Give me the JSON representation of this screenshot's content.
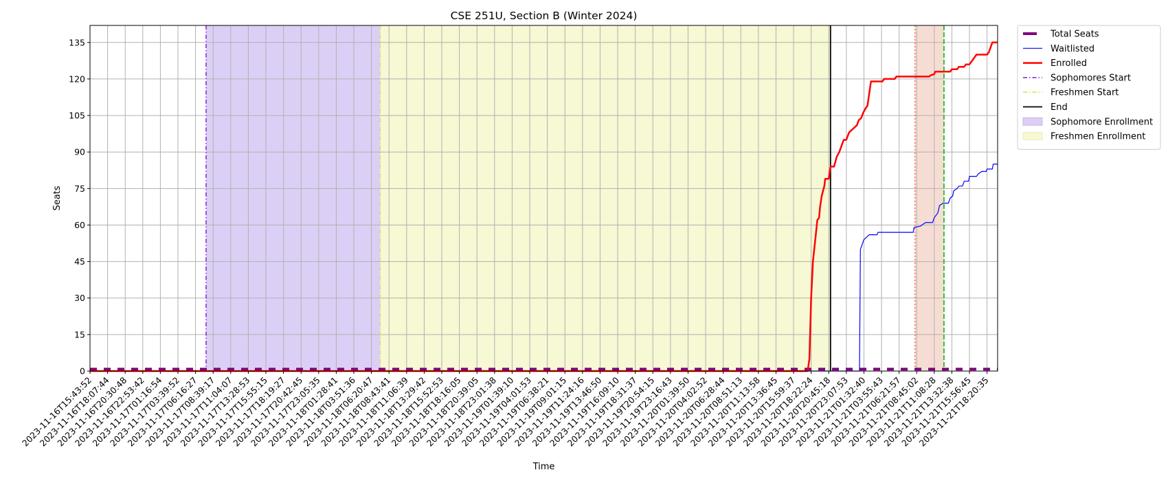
{
  "chart_data": {
    "type": "line",
    "title": "CSE 251U, Section B (Winter 2024)",
    "xlabel": "Time",
    "ylabel": "Seats",
    "ylim": [
      0,
      142
    ],
    "yticks": [
      0,
      15,
      30,
      45,
      60,
      75,
      90,
      105,
      120,
      135
    ],
    "grid": true,
    "legend_position": "outside-right",
    "x_categories": [
      "2023-11-16T15:43:52",
      "2023-11-16T18:07:44",
      "2023-11-16T20:30:48",
      "2023-11-16T22:53:42",
      "2023-11-17T01:16:54",
      "2023-11-17T03:39:52",
      "2023-11-17T06:16:27",
      "2023-11-17T08:39:17",
      "2023-11-17T11:04:07",
      "2023-11-17T13:28:53",
      "2023-11-17T15:55:15",
      "2023-11-17T18:19:27",
      "2023-11-17T20:42:45",
      "2023-11-17T23:05:35",
      "2023-11-18T01:28:41",
      "2023-11-18T03:51:36",
      "2023-11-18T06:20:47",
      "2023-11-18T08:43:41",
      "2023-11-18T11:06:39",
      "2023-11-18T13:29:42",
      "2023-11-18T15:52:53",
      "2023-11-18T18:16:05",
      "2023-11-18T20:39:05",
      "2023-11-18T23:01:38",
      "2023-11-19T01:39:10",
      "2023-11-19T04:01:53",
      "2023-11-19T06:38:21",
      "2023-11-19T09:01:15",
      "2023-11-19T11:24:16",
      "2023-11-19T13:46:50",
      "2023-11-19T16:09:10",
      "2023-11-19T18:31:37",
      "2023-11-19T20:54:15",
      "2023-11-19T23:16:43",
      "2023-11-20T01:39:50",
      "2023-11-20T04:02:52",
      "2023-11-20T06:28:44",
      "2023-11-20T08:51:13",
      "2023-11-20T11:13:58",
      "2023-11-20T13:36:45",
      "2023-11-20T15:59:37",
      "2023-11-20T18:22:24",
      "2023-11-20T20:45:18",
      "2023-11-20T23:07:53",
      "2023-11-21T01:32:40",
      "2023-11-21T03:55:43",
      "2023-11-21T06:21:57",
      "2023-11-21T08:45:02",
      "2023-11-21T11:08:28",
      "2023-11-21T13:32:38",
      "2023-11-21T15:56:45",
      "2023-11-21T18:20:35"
    ],
    "x_range": [
      0,
      51.6
    ],
    "series": [
      {
        "name": "Total Seats",
        "color": "#800080",
        "style": "dashed-thick",
        "points": [
          [
            0,
            0.8
          ],
          [
            51.6,
            0.8
          ]
        ]
      },
      {
        "name": "Waitlisted",
        "color": "#0000ff",
        "style": "solid-thin",
        "points": [
          [
            0,
            0
          ],
          [
            43.75,
            0
          ],
          [
            43.8,
            50
          ],
          [
            44.0,
            54
          ],
          [
            44.15,
            55
          ],
          [
            44.3,
            56
          ],
          [
            44.75,
            56
          ],
          [
            44.8,
            57
          ],
          [
            46.8,
            57
          ],
          [
            46.85,
            59
          ],
          [
            47.2,
            59.5
          ],
          [
            47.3,
            60
          ],
          [
            47.5,
            61
          ],
          [
            47.9,
            61
          ],
          [
            48.0,
            63
          ],
          [
            48.2,
            65
          ],
          [
            48.3,
            68
          ],
          [
            48.5,
            69
          ],
          [
            48.8,
            69
          ],
          [
            48.9,
            71
          ],
          [
            49.05,
            72
          ],
          [
            49.1,
            74
          ],
          [
            49.3,
            75
          ],
          [
            49.4,
            76
          ],
          [
            49.6,
            76
          ],
          [
            49.7,
            78
          ],
          [
            49.95,
            78
          ],
          [
            50.0,
            80
          ],
          [
            50.4,
            80
          ],
          [
            50.5,
            81
          ],
          [
            50.7,
            82
          ],
          [
            50.95,
            82
          ],
          [
            51.0,
            83
          ],
          [
            51.3,
            83
          ],
          [
            51.35,
            85
          ],
          [
            51.6,
            85
          ]
        ]
      },
      {
        "name": "Enrolled",
        "color": "#ff0000",
        "style": "solid-thick",
        "points": [
          [
            0,
            0
          ],
          [
            40.8,
            0
          ],
          [
            40.9,
            5
          ],
          [
            41.0,
            30
          ],
          [
            41.1,
            45
          ],
          [
            41.25,
            55
          ],
          [
            41.35,
            62
          ],
          [
            41.45,
            63
          ],
          [
            41.5,
            67
          ],
          [
            41.6,
            72
          ],
          [
            41.75,
            76
          ],
          [
            41.8,
            79
          ],
          [
            42.0,
            79
          ],
          [
            42.1,
            84
          ],
          [
            42.3,
            84
          ],
          [
            42.45,
            88
          ],
          [
            42.6,
            90
          ],
          [
            42.75,
            93
          ],
          [
            42.85,
            95
          ],
          [
            43.0,
            95
          ],
          [
            43.15,
            98
          ],
          [
            43.3,
            99
          ],
          [
            43.45,
            100
          ],
          [
            43.6,
            101
          ],
          [
            43.7,
            103
          ],
          [
            43.85,
            104
          ],
          [
            43.95,
            106
          ],
          [
            44.1,
            108
          ],
          [
            44.2,
            109
          ],
          [
            44.3,
            114
          ],
          [
            44.4,
            119
          ],
          [
            45.05,
            119
          ],
          [
            45.15,
            120
          ],
          [
            45.75,
            120
          ],
          [
            45.85,
            121
          ],
          [
            47.7,
            121
          ],
          [
            47.8,
            121.5
          ],
          [
            48.0,
            122
          ],
          [
            48.05,
            123
          ],
          [
            48.9,
            123
          ],
          [
            49.0,
            124
          ],
          [
            49.3,
            124
          ],
          [
            49.4,
            125
          ],
          [
            49.7,
            125
          ],
          [
            49.8,
            126
          ],
          [
            50.0,
            126
          ],
          [
            50.1,
            127
          ],
          [
            50.2,
            128
          ],
          [
            50.3,
            129
          ],
          [
            50.4,
            130
          ],
          [
            51.0,
            130
          ],
          [
            51.1,
            131
          ],
          [
            51.2,
            133
          ],
          [
            51.3,
            135
          ],
          [
            51.6,
            135
          ]
        ]
      },
      {
        "name": "Sophomores Start",
        "color": "#8a2be2",
        "style": "dashdot-vline",
        "x": 6.6
      },
      {
        "name": "Freshmen Start",
        "color": "#dede5a",
        "style": "dashdot-vline",
        "x": 16.5
      },
      {
        "name": "End",
        "color": "#000000",
        "style": "solid-vline",
        "x": 42.1
      },
      {
        "name": "Sophomore Enrollment",
        "color": "#dccff5",
        "style": "span",
        "x": [
          6.6,
          16.5
        ]
      },
      {
        "name": "Freshmen Enrollment",
        "color": "#f7f8d4",
        "style": "span",
        "x": [
          16.5,
          42.1
        ]
      }
    ],
    "extra_marks": {
      "span_color": "#f6ddd3",
      "span_x": [
        46.9,
        48.55
      ],
      "dotted_line_color": "#ff6a4a",
      "dotted_line_x": 46.9,
      "dashed_line_color": "#22bb22",
      "dashed_line_x": 48.55
    }
  }
}
